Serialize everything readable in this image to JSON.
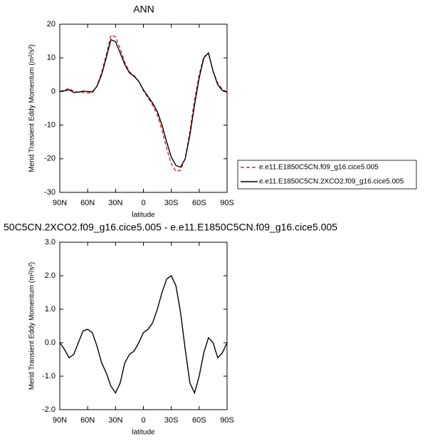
{
  "chart_data": [
    {
      "type": "line",
      "title": "ANN",
      "xlabel": "latitude",
      "ylabel": "Merid Transient Eddy Momentum (m²/s²)",
      "x": [
        90,
        85,
        80,
        75,
        70,
        65,
        60,
        55,
        50,
        45,
        40,
        35,
        30,
        25,
        20,
        15,
        10,
        5,
        0,
        -5,
        -10,
        -15,
        -20,
        -25,
        -30,
        -35,
        -40,
        -45,
        -50,
        -55,
        -60,
        -65,
        -70,
        -75,
        -80,
        -85,
        -90
      ],
      "series": [
        {
          "name": "e.e11.E1850C5CN.f09_g16.cice5.005",
          "color": "#d62728",
          "dash": true,
          "values": [
            0,
            0.4,
            0.95,
            0.05,
            -0.2,
            -0.25,
            -0.4,
            -0.4,
            1.6,
            5.6,
            10.9,
            16.7,
            16.3,
            12.7,
            8.6,
            5.85,
            4.75,
            3.0,
            0.2,
            -1.9,
            -4.1,
            -7.0,
            -11.5,
            -16.9,
            -21.5,
            -23.7,
            -23.4,
            -19.8,
            -11.8,
            -2.5,
            5.0,
            10.3,
            11.35,
            6.0,
            2.45,
            0.6,
            -0.2
          ]
        },
        {
          "name": "e.e11.E1850C5CN.2XCO2.f09_g16.cice5.005",
          "color": "#000000",
          "dash": false,
          "values": [
            0,
            0.2,
            0.5,
            -0.3,
            -0.2,
            0.1,
            0,
            -0.1,
            1.5,
            5,
            10,
            15.4,
            14.8,
            11.5,
            8,
            5.5,
            4.5,
            3,
            0.5,
            -1.5,
            -3.5,
            -6,
            -10,
            -15,
            -19.5,
            -22,
            -22.5,
            -20,
            -13,
            -4,
            4,
            10,
            11.5,
            6,
            2,
            0.3,
            -0.2
          ]
        }
      ],
      "xlim": [
        90,
        -90
      ],
      "xticks": [
        {
          "value": 90,
          "label": "90N"
        },
        {
          "value": 60,
          "label": "60N"
        },
        {
          "value": 30,
          "label": "30N"
        },
        0,
        {
          "value": -30,
          "label": "30S"
        },
        {
          "value": -60,
          "label": "60S"
        },
        {
          "value": -90,
          "label": "90S"
        }
      ],
      "ylim": [
        -30,
        20
      ],
      "yticks": [
        20,
        10,
        0,
        -10,
        -20,
        -30
      ],
      "legend": "right"
    },
    {
      "type": "line",
      "title": "50C5CN.2XCO2.f09_g16.cice5.005 - e.e11.E1850C5CN.f09_g16.cice5.005",
      "xlabel": "latitude",
      "ylabel": "Merid Transient Eddy Momentum (m²/s²)",
      "x": [
        90,
        85,
        80,
        75,
        70,
        65,
        60,
        55,
        50,
        45,
        40,
        35,
        30,
        25,
        20,
        15,
        10,
        5,
        0,
        -5,
        -10,
        -15,
        -20,
        -25,
        -30,
        -35,
        -40,
        -45,
        -50,
        -55,
        -60,
        -65,
        -70,
        -75,
        -80,
        -85,
        -90
      ],
      "values": [
        0,
        -0.2,
        -0.45,
        -0.35,
        0,
        0.35,
        0.4,
        0.3,
        -0.1,
        -0.6,
        -0.9,
        -1.3,
        -1.5,
        -1.2,
        -0.6,
        -0.35,
        -0.25,
        0,
        0.3,
        0.4,
        0.6,
        1.0,
        1.5,
        1.9,
        2.0,
        1.7,
        0.9,
        -0.2,
        -1.2,
        -1.5,
        -1.0,
        -0.3,
        0.15,
        0,
        -0.45,
        -0.3,
        0
      ],
      "color": "#000000",
      "xlim": [
        90,
        -90
      ],
      "xticks": [
        {
          "value": 90,
          "label": "90N"
        },
        {
          "value": 60,
          "label": "60N"
        },
        {
          "value": 30,
          "label": "30N"
        },
        0,
        {
          "value": -30,
          "label": "30S"
        },
        {
          "value": -60,
          "label": "60S"
        },
        {
          "value": -90,
          "label": "90S"
        }
      ],
      "ylim": [
        -2,
        3
      ],
      "yticks": [
        {
          "value": 3,
          "label": "3.0"
        },
        {
          "value": 2,
          "label": "2.0"
        },
        {
          "value": 1,
          "label": "1.0"
        },
        {
          "value": 0,
          "label": "0.0"
        },
        {
          "value": -1,
          "label": "-1.0"
        },
        {
          "value": -2,
          "label": "-2.0"
        }
      ]
    }
  ]
}
